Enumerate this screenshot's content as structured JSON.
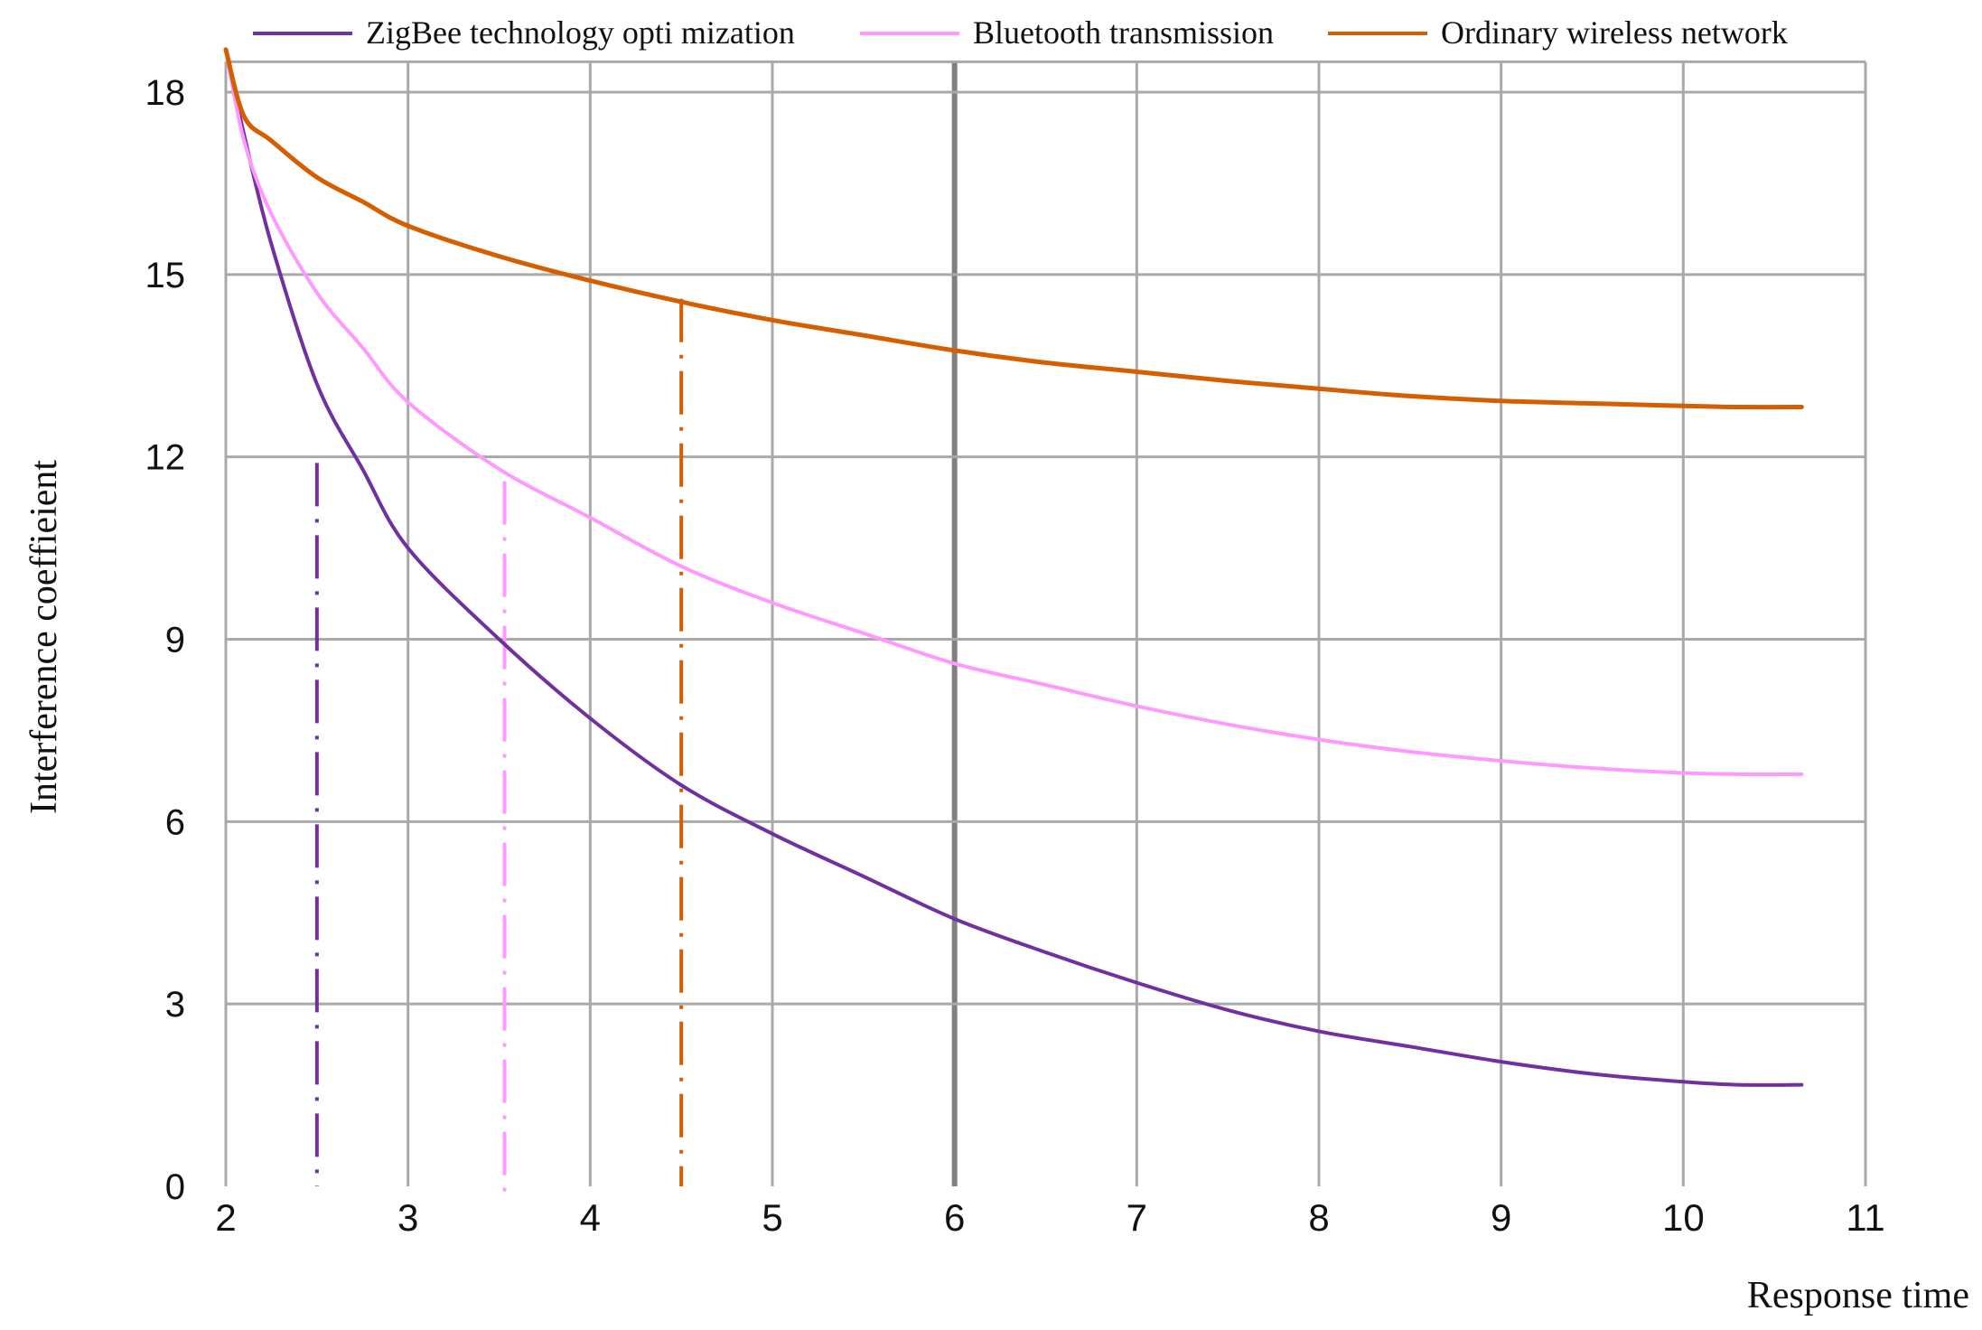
{
  "chart_data": {
    "type": "line",
    "xlabel": "Response time",
    "ylabel": "Interference coeffieient",
    "xlim": [
      2,
      11
    ],
    "ylim": [
      0,
      18
    ],
    "x_ticks": [
      "2",
      "3",
      "4",
      "5",
      "6",
      "7",
      "8",
      "9",
      "10",
      "11"
    ],
    "y_ticks": [
      "0",
      "3",
      "6",
      "9",
      "12",
      "15",
      "18"
    ],
    "grid": true,
    "legend_position": "top",
    "emphasized_x_gridline": 6,
    "series": [
      {
        "name": "ZigBee technology opti mization",
        "color": "#7030A0",
        "x": [
          2.0,
          2.1,
          2.25,
          2.5,
          2.75,
          3.0,
          3.5,
          4.0,
          4.5,
          5.0,
          5.5,
          6.0,
          6.5,
          7.0,
          7.5,
          8.0,
          8.5,
          9.0,
          9.5,
          10.0,
          10.3,
          10.65
        ],
        "y": [
          18.7,
          17.3,
          15.5,
          13.2,
          11.8,
          10.5,
          9.0,
          7.7,
          6.6,
          5.8,
          5.1,
          4.4,
          3.85,
          3.35,
          2.9,
          2.55,
          2.3,
          2.05,
          1.85,
          1.72,
          1.67,
          1.67
        ]
      },
      {
        "name": "Bluetooth transmission",
        "color": "#FF99FF",
        "x": [
          2.0,
          2.1,
          2.25,
          2.5,
          2.75,
          3.0,
          3.5,
          4.0,
          4.5,
          5.0,
          5.5,
          6.0,
          6.5,
          7.0,
          7.5,
          8.0,
          8.5,
          9.0,
          9.5,
          10.0,
          10.3,
          10.65
        ],
        "y": [
          18.7,
          17.2,
          16.0,
          14.7,
          13.8,
          12.9,
          11.8,
          11.0,
          10.2,
          9.6,
          9.1,
          8.6,
          8.25,
          7.9,
          7.6,
          7.35,
          7.15,
          7.0,
          6.88,
          6.8,
          6.78,
          6.78
        ]
      },
      {
        "name": "Ordinary wireless network",
        "color": "#D55E00",
        "x": [
          2.0,
          2.1,
          2.25,
          2.5,
          2.75,
          3.0,
          3.5,
          4.0,
          4.5,
          5.0,
          5.5,
          6.0,
          6.5,
          7.0,
          7.5,
          8.0,
          8.5,
          9.0,
          9.5,
          10.0,
          10.3,
          10.65
        ],
        "y": [
          18.7,
          17.6,
          17.2,
          16.6,
          16.2,
          15.8,
          15.3,
          14.9,
          14.55,
          14.25,
          14.0,
          13.75,
          13.55,
          13.4,
          13.25,
          13.12,
          13.0,
          12.92,
          12.88,
          12.84,
          12.82,
          12.82
        ]
      }
    ],
    "markers": [
      {
        "x": 2.5,
        "y_from": 0,
        "y_to": 11.9,
        "color": "#7030A0"
      },
      {
        "x": 3.53,
        "y_from": -0.2,
        "y_to": 11.6,
        "color": "#FF99FF"
      },
      {
        "x": 4.5,
        "y_from": 0,
        "y_to": 14.6,
        "color": "#D55E00"
      }
    ]
  }
}
